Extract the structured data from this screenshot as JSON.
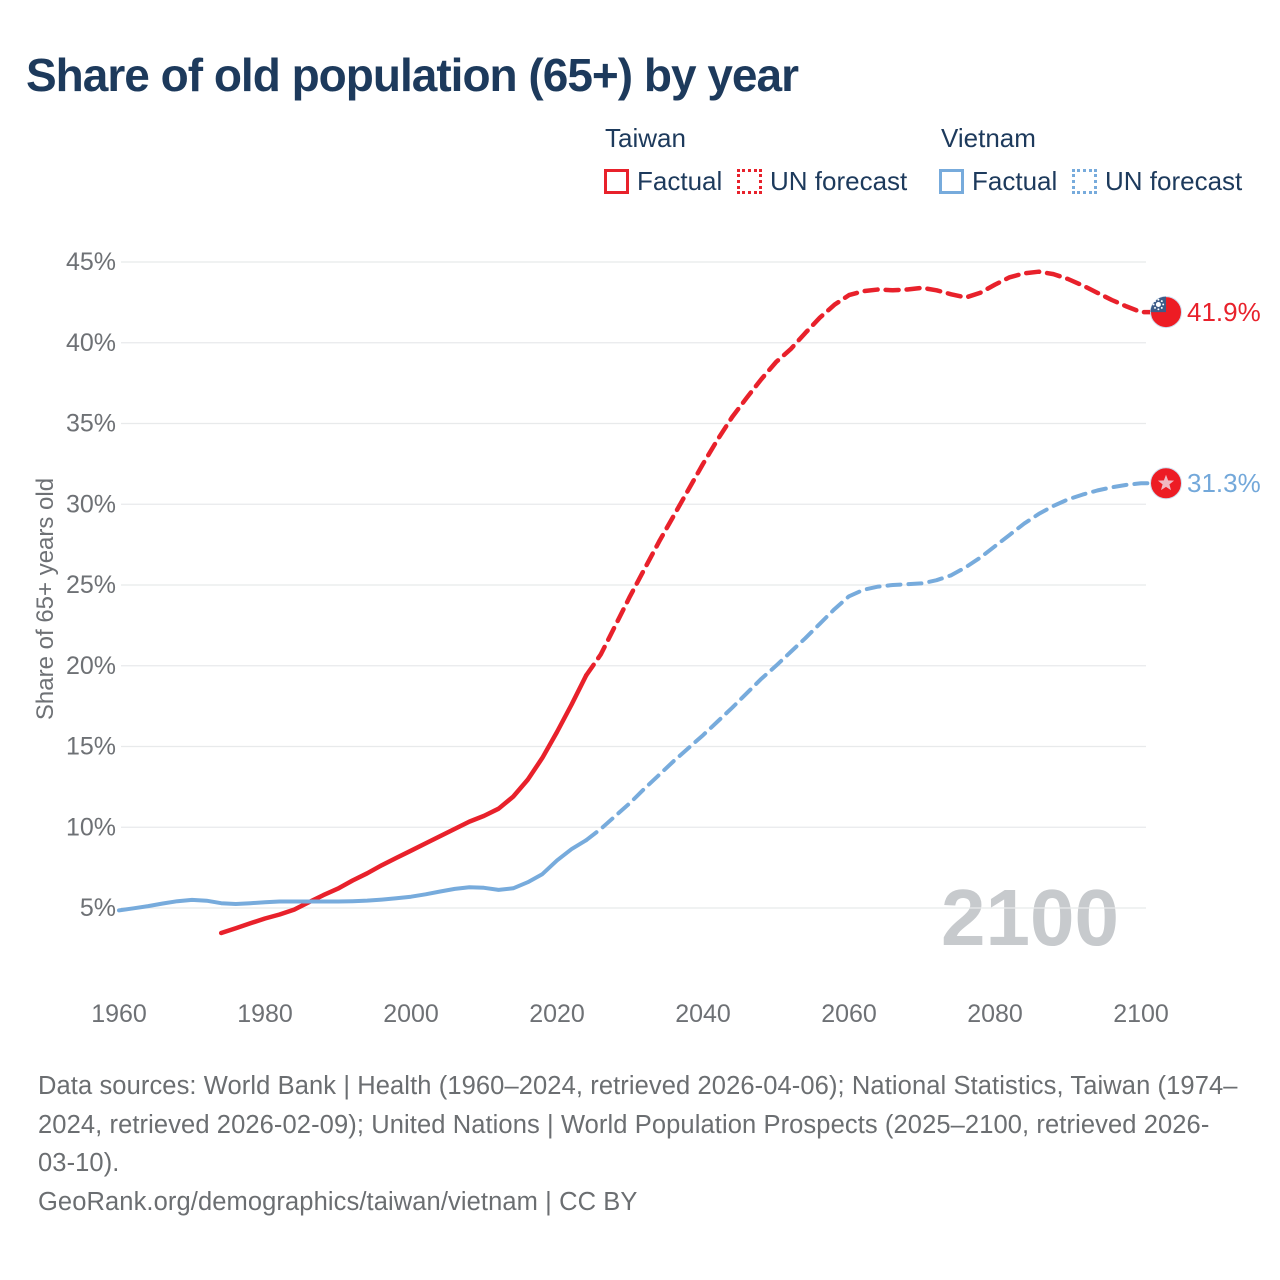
{
  "title": "Share of old population (65+) by year",
  "legend": {
    "groups": [
      {
        "name": "Taiwan",
        "items": [
          {
            "label": "Factual",
            "style": "solid",
            "color": "#e8212b"
          },
          {
            "label": "UN forecast",
            "style": "dotted",
            "color": "#e8212b"
          }
        ]
      },
      {
        "name": "Vietnam",
        "items": [
          {
            "label": "Factual",
            "style": "solid",
            "color": "#77abdc"
          },
          {
            "label": "UN forecast",
            "style": "dotted",
            "color": "#77abdc"
          }
        ]
      }
    ]
  },
  "chart_data": {
    "type": "line",
    "title": "Share of old population (65+) by year",
    "xlabel": "",
    "ylabel": "Share of 65+ years old",
    "ylim": [
      0,
      47
    ],
    "xlim": [
      1960,
      2100
    ],
    "grid": "horizontal",
    "legend_position": "top-right",
    "y_ticks": [
      {
        "value": 5,
        "label": "5%"
      },
      {
        "value": 10,
        "label": "10%"
      },
      {
        "value": 15,
        "label": "15%"
      },
      {
        "value": 20,
        "label": "20%"
      },
      {
        "value": 25,
        "label": "25%"
      },
      {
        "value": 30,
        "label": "30%"
      },
      {
        "value": 35,
        "label": "35%"
      },
      {
        "value": 40,
        "label": "40%"
      },
      {
        "value": 45,
        "label": "45%"
      }
    ],
    "x_ticks": [
      {
        "value": 1960,
        "label": "1960"
      },
      {
        "value": 1980,
        "label": "1980"
      },
      {
        "value": 2000,
        "label": "2000"
      },
      {
        "value": 2020,
        "label": "2020"
      },
      {
        "value": 2040,
        "label": "2040"
      },
      {
        "value": 2060,
        "label": "2060"
      },
      {
        "value": 2080,
        "label": "2080"
      },
      {
        "value": 2100,
        "label": "2100"
      }
    ],
    "series": [
      {
        "name": "Taiwan Factual",
        "color": "#e8212b",
        "dash": "solid",
        "width": 4.5,
        "points": [
          [
            1974,
            3.45
          ],
          [
            1976,
            3.75
          ],
          [
            1978,
            4.05
          ],
          [
            1980,
            4.35
          ],
          [
            1982,
            4.6
          ],
          [
            1984,
            4.9
          ],
          [
            1986,
            5.35
          ],
          [
            1988,
            5.8
          ],
          [
            1990,
            6.2
          ],
          [
            1992,
            6.7
          ],
          [
            1994,
            7.15
          ],
          [
            1996,
            7.65
          ],
          [
            1998,
            8.1
          ],
          [
            2000,
            8.55
          ],
          [
            2002,
            9.0
          ],
          [
            2004,
            9.45
          ],
          [
            2006,
            9.9
          ],
          [
            2008,
            10.35
          ],
          [
            2010,
            10.7
          ],
          [
            2012,
            11.15
          ],
          [
            2014,
            11.9
          ],
          [
            2016,
            12.95
          ],
          [
            2018,
            14.3
          ],
          [
            2020,
            15.9
          ],
          [
            2022,
            17.6
          ],
          [
            2024,
            19.4
          ]
        ]
      },
      {
        "name": "Taiwan UN forecast",
        "color": "#e8212b",
        "dash": "dashed",
        "width": 4.5,
        "points": [
          [
            2024,
            19.4
          ],
          [
            2026,
            20.7
          ],
          [
            2028,
            22.5
          ],
          [
            2030,
            24.3
          ],
          [
            2032,
            26.0
          ],
          [
            2034,
            27.7
          ],
          [
            2036,
            29.3
          ],
          [
            2038,
            30.9
          ],
          [
            2040,
            32.5
          ],
          [
            2042,
            34.0
          ],
          [
            2044,
            35.4
          ],
          [
            2046,
            36.6
          ],
          [
            2048,
            37.75
          ],
          [
            2050,
            38.8
          ],
          [
            2052,
            39.6
          ],
          [
            2054,
            40.6
          ],
          [
            2056,
            41.55
          ],
          [
            2058,
            42.35
          ],
          [
            2060,
            42.95
          ],
          [
            2062,
            43.2
          ],
          [
            2064,
            43.3
          ],
          [
            2066,
            43.25
          ],
          [
            2068,
            43.3
          ],
          [
            2070,
            43.4
          ],
          [
            2072,
            43.25
          ],
          [
            2074,
            43.0
          ],
          [
            2076,
            42.8
          ],
          [
            2078,
            43.1
          ],
          [
            2080,
            43.6
          ],
          [
            2082,
            44.05
          ],
          [
            2084,
            44.3
          ],
          [
            2086,
            44.4
          ],
          [
            2088,
            44.25
          ],
          [
            2090,
            43.95
          ],
          [
            2092,
            43.55
          ],
          [
            2094,
            43.1
          ],
          [
            2096,
            42.65
          ],
          [
            2098,
            42.25
          ],
          [
            2100,
            41.9
          ]
        ],
        "extend_to_marker": true
      },
      {
        "name": "Vietnam Factual",
        "color": "#77abdc",
        "dash": "solid",
        "width": 4,
        "points": [
          [
            1960,
            4.85
          ],
          [
            1962,
            4.98
          ],
          [
            1964,
            5.12
          ],
          [
            1966,
            5.28
          ],
          [
            1968,
            5.42
          ],
          [
            1970,
            5.5
          ],
          [
            1972,
            5.45
          ],
          [
            1974,
            5.3
          ],
          [
            1976,
            5.25
          ],
          [
            1978,
            5.3
          ],
          [
            1980,
            5.36
          ],
          [
            1982,
            5.4
          ],
          [
            1984,
            5.4
          ],
          [
            1986,
            5.4
          ],
          [
            1988,
            5.4
          ],
          [
            1990,
            5.4
          ],
          [
            1992,
            5.42
          ],
          [
            1994,
            5.46
          ],
          [
            1996,
            5.52
          ],
          [
            1998,
            5.6
          ],
          [
            2000,
            5.7
          ],
          [
            2002,
            5.85
          ],
          [
            2004,
            6.02
          ],
          [
            2006,
            6.18
          ],
          [
            2008,
            6.28
          ],
          [
            2010,
            6.25
          ],
          [
            2012,
            6.12
          ],
          [
            2014,
            6.22
          ],
          [
            2016,
            6.6
          ],
          [
            2018,
            7.1
          ],
          [
            2020,
            7.95
          ],
          [
            2022,
            8.65
          ],
          [
            2024,
            9.2
          ]
        ]
      },
      {
        "name": "Vietnam UN forecast",
        "color": "#77abdc",
        "dash": "dashed",
        "width": 4,
        "points": [
          [
            2024,
            9.2
          ],
          [
            2026,
            9.9
          ],
          [
            2028,
            10.7
          ],
          [
            2030,
            11.5
          ],
          [
            2032,
            12.4
          ],
          [
            2034,
            13.25
          ],
          [
            2036,
            14.1
          ],
          [
            2038,
            14.9
          ],
          [
            2040,
            15.7
          ],
          [
            2042,
            16.55
          ],
          [
            2044,
            17.4
          ],
          [
            2046,
            18.3
          ],
          [
            2048,
            19.2
          ],
          [
            2050,
            20.0
          ],
          [
            2052,
            20.85
          ],
          [
            2054,
            21.7
          ],
          [
            2056,
            22.6
          ],
          [
            2058,
            23.5
          ],
          [
            2060,
            24.3
          ],
          [
            2062,
            24.7
          ],
          [
            2064,
            24.9
          ],
          [
            2066,
            25.0
          ],
          [
            2068,
            25.05
          ],
          [
            2070,
            25.1
          ],
          [
            2072,
            25.3
          ],
          [
            2074,
            25.6
          ],
          [
            2076,
            26.1
          ],
          [
            2078,
            26.7
          ],
          [
            2080,
            27.4
          ],
          [
            2082,
            28.1
          ],
          [
            2084,
            28.8
          ],
          [
            2086,
            29.4
          ],
          [
            2088,
            29.9
          ],
          [
            2090,
            30.3
          ],
          [
            2092,
            30.6
          ],
          [
            2094,
            30.85
          ],
          [
            2096,
            31.05
          ],
          [
            2098,
            31.2
          ],
          [
            2100,
            31.3
          ]
        ],
        "extend_to_marker": true
      }
    ],
    "end_markers": [
      {
        "series": "Taiwan",
        "year": 2100,
        "value": 41.9,
        "label": "41.9%",
        "flag": "taiwan-flag",
        "label_color": "#e8212b"
      },
      {
        "series": "Vietnam",
        "year": 2100,
        "value": 31.3,
        "label": "31.3%",
        "flag": "vietnam-flag",
        "label_color": "#73a8da"
      }
    ],
    "watermark": "2100"
  },
  "footer": {
    "lines": [
      "Data sources: World Bank | Health (1960–2024, retrieved 2026-04-06); National Statistics, Taiwan (1974–",
      "2024, retrieved 2026-02-09); United Nations | World Population Prospects (2025–2100, retrieved 2026-",
      "03-10).",
      "GeoRank.org/demographics/taiwan/vietnam | CC BY"
    ]
  }
}
